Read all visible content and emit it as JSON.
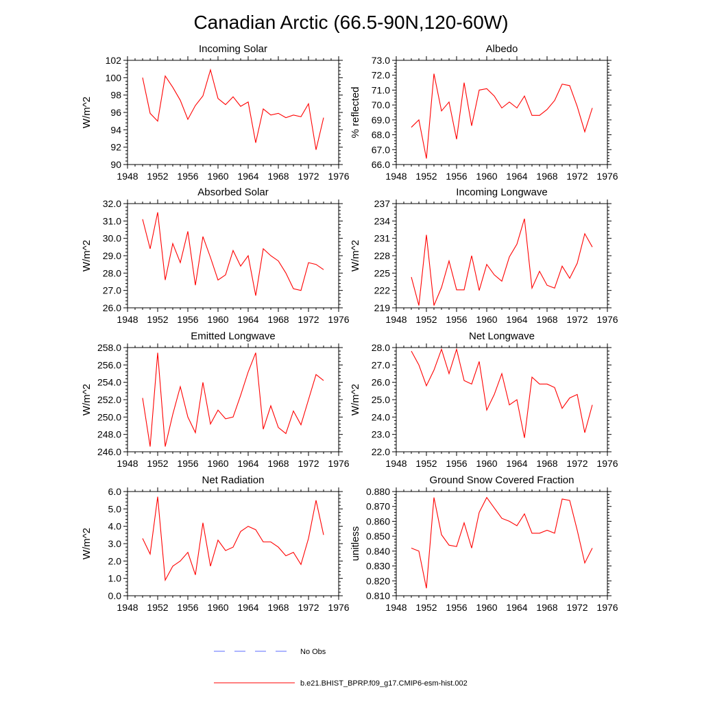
{
  "title": "Canadian Arctic (66.5-90N,120-60W)",
  "colors": {
    "model": "#ff0000",
    "obs": "#5a6aff",
    "axis": "#000000"
  },
  "legend": {
    "obs_label": "No Obs",
    "model_label": "b.e21.BHIST_BPRP.f09_g17.CMIP6-esm-hist.002"
  },
  "chart_data": [
    {
      "type": "line",
      "title": "Incoming Solar",
      "xlabel": "",
      "ylabel": "W/m^2",
      "xlim": [
        1948,
        1976
      ],
      "ylim": [
        90,
        102
      ],
      "xticks": [
        1948,
        1952,
        1956,
        1960,
        1964,
        1968,
        1972,
        1976
      ],
      "yticks": [
        90,
        92,
        94,
        96,
        98,
        100,
        102
      ],
      "ytick_labels": [
        "90",
        "92",
        "94",
        "96",
        "98",
        "100",
        "102"
      ],
      "x": [
        1950,
        1951,
        1952,
        1953,
        1954,
        1955,
        1956,
        1957,
        1958,
        1959,
        1960,
        1961,
        1962,
        1963,
        1964,
        1965,
        1966,
        1967,
        1968,
        1969,
        1970,
        1971,
        1972,
        1973,
        1974
      ],
      "series": [
        {
          "name": "b.e21.BHIST_BPRP.f09_g17.CMIP6-esm-hist.002",
          "values": [
            100.0,
            95.9,
            95.0,
            100.2,
            98.9,
            97.4,
            95.2,
            96.8,
            97.9,
            100.9,
            97.6,
            96.9,
            97.8,
            96.7,
            97.2,
            92.5,
            96.4,
            95.7,
            95.9,
            95.4,
            95.7,
            95.5,
            97.0,
            91.7,
            95.4
          ]
        }
      ]
    },
    {
      "type": "line",
      "title": "Albedo",
      "xlabel": "",
      "ylabel": "% reflected",
      "xlim": [
        1948,
        1976
      ],
      "ylim": [
        66,
        73
      ],
      "xticks": [
        1948,
        1952,
        1956,
        1960,
        1964,
        1968,
        1972,
        1976
      ],
      "yticks": [
        66,
        67,
        68,
        69,
        70,
        71,
        72,
        73
      ],
      "ytick_labels": [
        "66.0",
        "67.0",
        "68.0",
        "69.0",
        "70.0",
        "71.0",
        "72.0",
        "73.0"
      ],
      "x": [
        1950,
        1951,
        1952,
        1953,
        1954,
        1955,
        1956,
        1957,
        1958,
        1959,
        1960,
        1961,
        1962,
        1963,
        1964,
        1965,
        1966,
        1967,
        1968,
        1969,
        1970,
        1971,
        1972,
        1973,
        1974
      ],
      "series": [
        {
          "name": "b.e21.BHIST_BPRP.f09_g17.CMIP6-esm-hist.002",
          "values": [
            68.5,
            69.0,
            66.4,
            72.1,
            69.6,
            70.2,
            67.7,
            71.5,
            68.6,
            71.0,
            71.1,
            70.6,
            69.8,
            70.2,
            69.8,
            70.6,
            69.3,
            69.3,
            69.7,
            70.3,
            71.4,
            71.3,
            69.9,
            68.2,
            69.8
          ]
        }
      ]
    },
    {
      "type": "line",
      "title": "Absorbed Solar",
      "xlabel": "",
      "ylabel": "W/m^2",
      "xlim": [
        1948,
        1976
      ],
      "ylim": [
        26,
        32
      ],
      "xticks": [
        1948,
        1952,
        1956,
        1960,
        1964,
        1968,
        1972,
        1976
      ],
      "yticks": [
        26,
        27,
        28,
        29,
        30,
        31,
        32
      ],
      "ytick_labels": [
        "26.0",
        "27.0",
        "28.0",
        "29.0",
        "30.0",
        "31.0",
        "32.0"
      ],
      "x": [
        1950,
        1951,
        1952,
        1953,
        1954,
        1955,
        1956,
        1957,
        1958,
        1959,
        1960,
        1961,
        1962,
        1963,
        1964,
        1965,
        1966,
        1967,
        1968,
        1969,
        1970,
        1971,
        1972,
        1973,
        1974
      ],
      "series": [
        {
          "name": "b.e21.BHIST_BPRP.f09_g17.CMIP6-esm-hist.002",
          "values": [
            31.1,
            29.4,
            31.5,
            27.6,
            29.7,
            28.6,
            30.4,
            27.3,
            30.1,
            28.9,
            27.6,
            27.9,
            29.3,
            28.4,
            29.0,
            26.7,
            29.4,
            29.0,
            28.7,
            28.0,
            27.1,
            27.0,
            28.6,
            28.5,
            28.2
          ]
        }
      ]
    },
    {
      "type": "line",
      "title": "Incoming Longwave",
      "xlabel": "",
      "ylabel": "W/m^2",
      "xlim": [
        1948,
        1976
      ],
      "ylim": [
        219,
        237
      ],
      "xticks": [
        1948,
        1952,
        1956,
        1960,
        1964,
        1968,
        1972,
        1976
      ],
      "yticks": [
        219,
        222,
        225,
        228,
        231,
        234,
        237
      ],
      "ytick_labels": [
        "219",
        "222",
        "225",
        "228",
        "231",
        "234",
        "237"
      ],
      "x": [
        1950,
        1951,
        1952,
        1953,
        1954,
        1955,
        1956,
        1957,
        1958,
        1959,
        1960,
        1961,
        1962,
        1963,
        1964,
        1965,
        1966,
        1967,
        1968,
        1969,
        1970,
        1971,
        1972,
        1973,
        1974
      ],
      "series": [
        {
          "name": "b.e21.BHIST_BPRP.f09_g17.CMIP6-esm-hist.002",
          "values": [
            224.3,
            219.4,
            231.6,
            219.4,
            222.5,
            227.1,
            222.1,
            222.1,
            228.0,
            222.0,
            226.5,
            224.7,
            223.6,
            227.8,
            230.0,
            234.4,
            222.4,
            225.3,
            222.9,
            222.4,
            226.2,
            224.1,
            226.7,
            231.8,
            229.5
          ]
        }
      ]
    },
    {
      "type": "line",
      "title": "Emitted Longwave",
      "xlabel": "",
      "ylabel": "W/m^2",
      "xlim": [
        1948,
        1976
      ],
      "ylim": [
        246,
        258
      ],
      "xticks": [
        1948,
        1952,
        1956,
        1960,
        1964,
        1968,
        1972,
        1976
      ],
      "yticks": [
        246,
        248,
        250,
        252,
        254,
        256,
        258
      ],
      "ytick_labels": [
        "246.0",
        "248.0",
        "250.0",
        "252.0",
        "254.0",
        "256.0",
        "258.0"
      ],
      "x": [
        1950,
        1951,
        1952,
        1953,
        1954,
        1955,
        1956,
        1957,
        1958,
        1959,
        1960,
        1961,
        1962,
        1963,
        1964,
        1965,
        1966,
        1967,
        1968,
        1969,
        1970,
        1971,
        1972,
        1973,
        1974
      ],
      "series": [
        {
          "name": "b.e21.BHIST_BPRP.f09_g17.CMIP6-esm-hist.002",
          "values": [
            252.2,
            246.6,
            257.4,
            246.6,
            250.3,
            253.5,
            250.0,
            248.2,
            254.0,
            249.2,
            250.8,
            249.8,
            250.0,
            252.5,
            255.2,
            257.4,
            248.6,
            251.3,
            248.8,
            248.1,
            250.7,
            249.1,
            252.0,
            254.9,
            254.2
          ]
        }
      ]
    },
    {
      "type": "line",
      "title": "Net Longwave",
      "xlabel": "",
      "ylabel": "W/m^2",
      "xlim": [
        1948,
        1976
      ],
      "ylim": [
        22,
        28
      ],
      "xticks": [
        1948,
        1952,
        1956,
        1960,
        1964,
        1968,
        1972,
        1976
      ],
      "yticks": [
        22,
        23,
        24,
        25,
        26,
        27,
        28
      ],
      "ytick_labels": [
        "22.0",
        "23.0",
        "24.0",
        "25.0",
        "26.0",
        "27.0",
        "28.0"
      ],
      "x": [
        1950,
        1951,
        1952,
        1953,
        1954,
        1955,
        1956,
        1957,
        1958,
        1959,
        1960,
        1961,
        1962,
        1963,
        1964,
        1965,
        1966,
        1967,
        1968,
        1969,
        1970,
        1971,
        1972,
        1973,
        1974
      ],
      "series": [
        {
          "name": "b.e21.BHIST_BPRP.f09_g17.CMIP6-esm-hist.002",
          "values": [
            27.8,
            27.0,
            25.8,
            26.7,
            27.9,
            26.5,
            27.9,
            26.1,
            25.9,
            27.2,
            24.4,
            25.3,
            26.5,
            24.7,
            25.0,
            22.8,
            26.3,
            25.9,
            25.9,
            25.7,
            24.5,
            25.1,
            25.3,
            23.1,
            24.7
          ]
        }
      ]
    },
    {
      "type": "line",
      "title": "Net Radiation",
      "xlabel": "",
      "ylabel": "W/m^2",
      "xlim": [
        1948,
        1976
      ],
      "ylim": [
        0,
        6
      ],
      "xticks": [
        1948,
        1952,
        1956,
        1960,
        1964,
        1968,
        1972,
        1976
      ],
      "yticks": [
        0,
        1,
        2,
        3,
        4,
        5,
        6
      ],
      "ytick_labels": [
        "0.0",
        "1.0",
        "2.0",
        "3.0",
        "4.0",
        "5.0",
        "6.0"
      ],
      "x": [
        1950,
        1951,
        1952,
        1953,
        1954,
        1955,
        1956,
        1957,
        1958,
        1959,
        1960,
        1961,
        1962,
        1963,
        1964,
        1965,
        1966,
        1967,
        1968,
        1969,
        1970,
        1971,
        1972,
        1973,
        1974
      ],
      "series": [
        {
          "name": "b.e21.BHIST_BPRP.f09_g17.CMIP6-esm-hist.002",
          "values": [
            3.3,
            2.4,
            5.7,
            0.9,
            1.7,
            2.0,
            2.5,
            1.2,
            4.2,
            1.7,
            3.2,
            2.6,
            2.8,
            3.7,
            4.0,
            3.8,
            3.1,
            3.1,
            2.8,
            2.3,
            2.5,
            1.8,
            3.3,
            5.5,
            3.5
          ]
        }
      ]
    },
    {
      "type": "line",
      "title": "Ground Snow Covered Fraction",
      "xlabel": "",
      "ylabel": "unitless",
      "xlim": [
        1948,
        1976
      ],
      "ylim": [
        0.81,
        0.88
      ],
      "xticks": [
        1948,
        1952,
        1956,
        1960,
        1964,
        1968,
        1972,
        1976
      ],
      "yticks": [
        0.81,
        0.82,
        0.83,
        0.84,
        0.85,
        0.86,
        0.87,
        0.88
      ],
      "ytick_labels": [
        "0.810",
        "0.820",
        "0.830",
        "0.840",
        "0.850",
        "0.860",
        "0.870",
        "0.880"
      ],
      "x": [
        1950,
        1951,
        1952,
        1953,
        1954,
        1955,
        1956,
        1957,
        1958,
        1959,
        1960,
        1961,
        1962,
        1963,
        1964,
        1965,
        1966,
        1967,
        1968,
        1969,
        1970,
        1971,
        1972,
        1973,
        1974
      ],
      "series": [
        {
          "name": "b.e21.BHIST_BPRP.f09_g17.CMIP6-esm-hist.002",
          "values": [
            0.842,
            0.84,
            0.815,
            0.876,
            0.851,
            0.844,
            0.843,
            0.859,
            0.842,
            0.866,
            0.876,
            0.869,
            0.862,
            0.86,
            0.857,
            0.865,
            0.852,
            0.852,
            0.854,
            0.852,
            0.875,
            0.874,
            0.854,
            0.832,
            0.842
          ]
        }
      ]
    }
  ]
}
